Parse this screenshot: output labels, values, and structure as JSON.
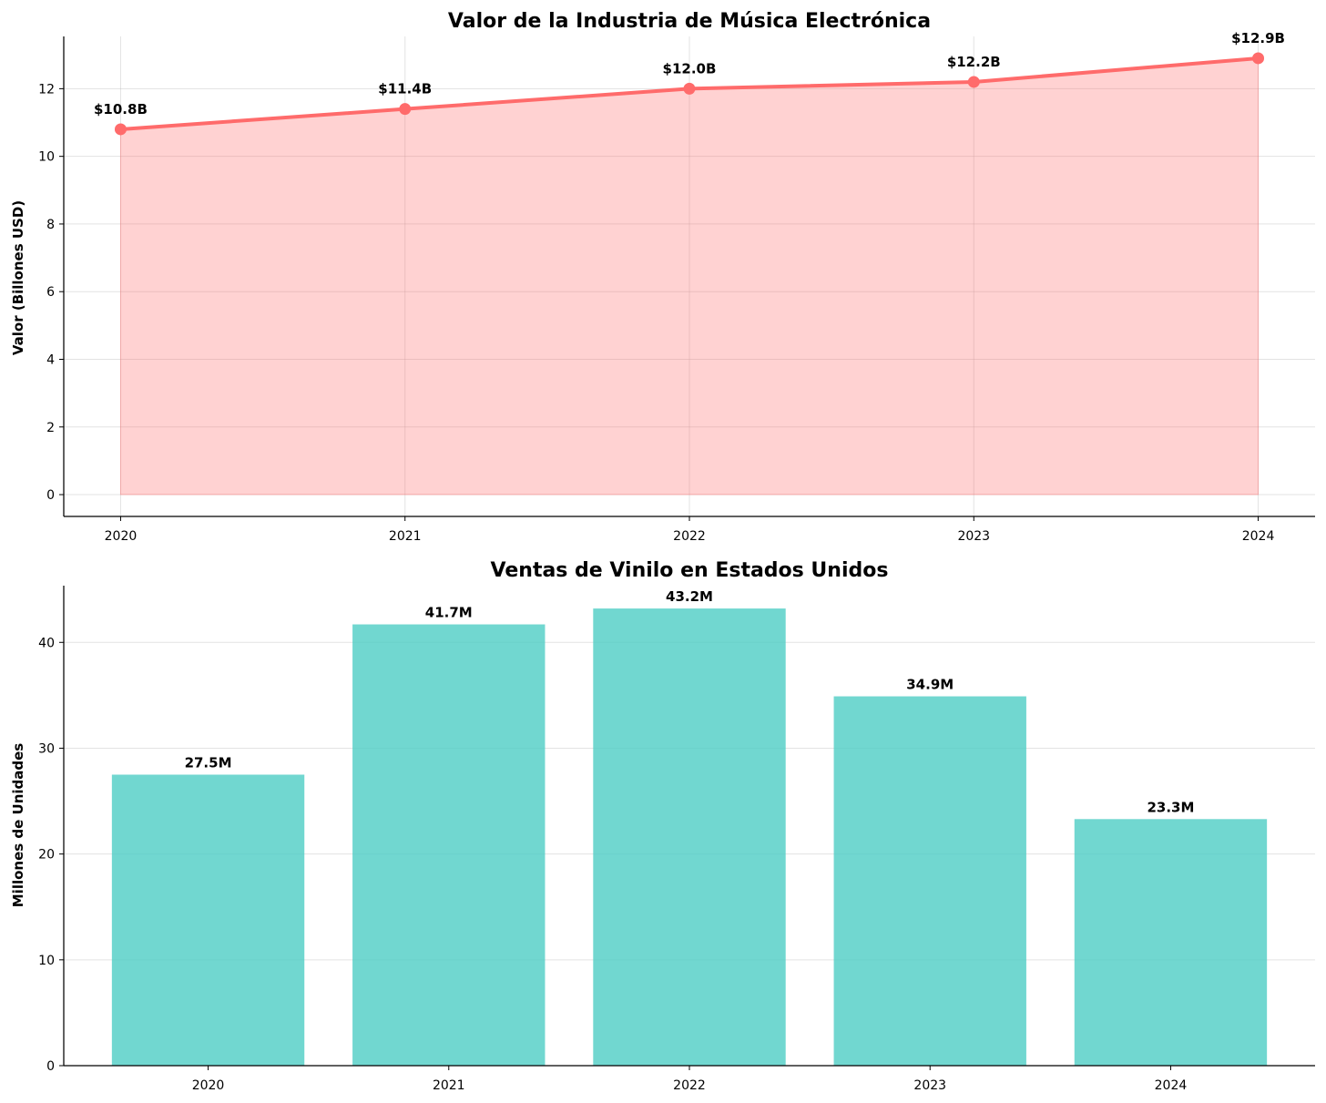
{
  "colors": {
    "line": "#FF6B6B",
    "area": "#FF6B6B",
    "bar": "#4ECDC4"
  },
  "chart_data": [
    {
      "type": "area",
      "title": "Valor de la Industria de Música Electrónica",
      "xlabel": "",
      "ylabel": "Valor (Billones USD)",
      "x": [
        "2020",
        "2021",
        "2022",
        "2023",
        "2024"
      ],
      "values": [
        10.8,
        11.4,
        12.0,
        12.2,
        12.9
      ],
      "data_labels": [
        "$10.8B",
        "$11.4B",
        "$12.0B",
        "$12.2B",
        "$12.9B"
      ],
      "yticks": [
        0,
        2,
        4,
        6,
        8,
        10,
        12
      ],
      "ylim": [
        -0.645,
        13.545
      ],
      "grid": true
    },
    {
      "type": "bar",
      "title": "Ventas de Vinilo en Estados Unidos",
      "xlabel": "",
      "ylabel": "Millones de Unidades",
      "categories": [
        "2020",
        "2021",
        "2022",
        "2023",
        "2024"
      ],
      "values": [
        27.5,
        41.7,
        43.2,
        34.9,
        23.3
      ],
      "data_labels": [
        "27.5M",
        "41.7M",
        "43.2M",
        "34.9M",
        "23.3M"
      ],
      "yticks": [
        0,
        10,
        20,
        30,
        40
      ],
      "ylim": [
        0,
        45.36
      ],
      "grid": true
    }
  ]
}
